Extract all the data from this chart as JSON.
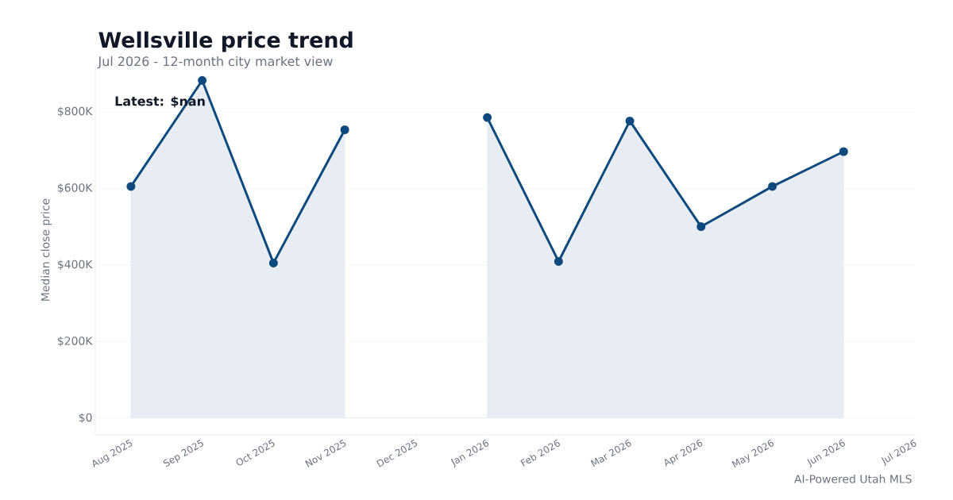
{
  "chart_data": {
    "type": "area",
    "title": "Wellsville price trend",
    "subtitle": "Jul 2026 - 12-month city market view",
    "ylabel": "Median close price",
    "categories": [
      "Aug 2025",
      "Sep 2025",
      "Oct 2025",
      "Nov 2025",
      "Dec 2025",
      "Jan 2026",
      "Feb 2026",
      "Mar 2026",
      "Apr 2026",
      "May 2026",
      "Jun 2026",
      "Jul 2026"
    ],
    "series": [
      {
        "color": "#0e4a7e",
        "values": [
          605000,
          882000,
          405000,
          753000,
          null,
          785000,
          409000,
          776000,
          500000,
          605000,
          696000,
          null
        ]
      }
    ],
    "ylim": [
      -44000,
      922000
    ],
    "yticks": [
      {
        "value": 0,
        "label": "$0"
      },
      {
        "value": 200000,
        "label": "$200K"
      },
      {
        "value": 400000,
        "label": "$400K"
      },
      {
        "value": 600000,
        "label": "$600K"
      },
      {
        "value": 800000,
        "label": "$800K"
      }
    ],
    "grid": "y",
    "marker": "circle",
    "line_style": "solid",
    "annotations": [
      "Latest: $nan",
      "AI-Powered Utah MLS"
    ]
  }
}
